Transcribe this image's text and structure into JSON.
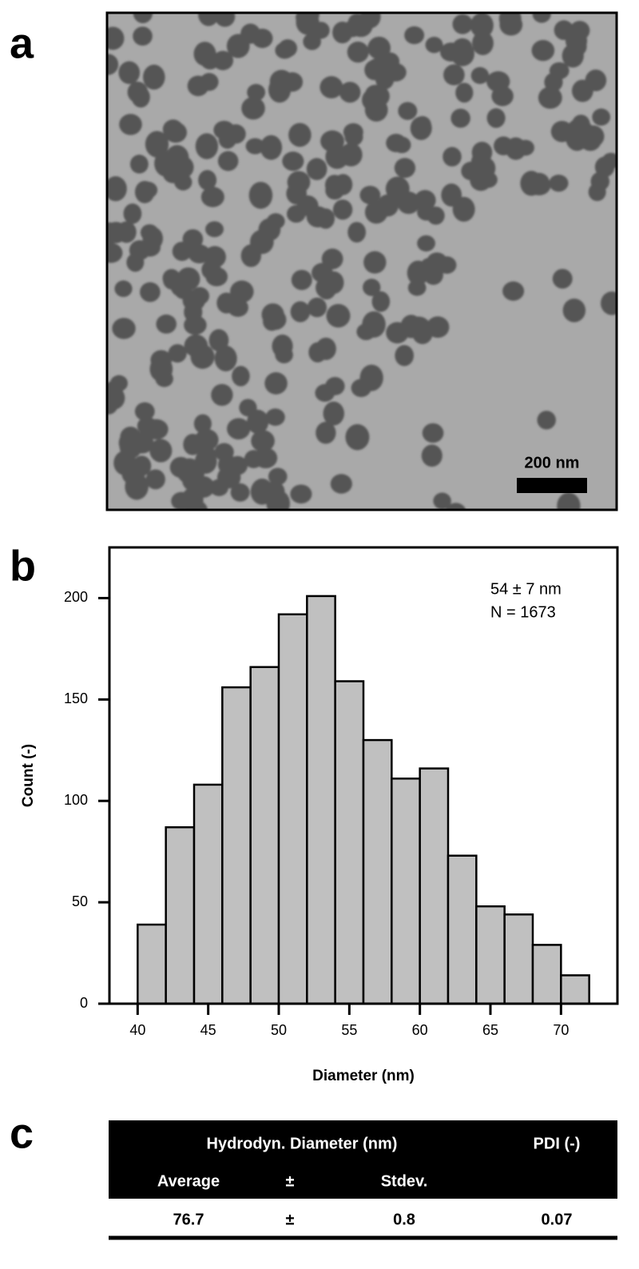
{
  "panel_labels": [
    "a",
    "b",
    "c"
  ],
  "image": {
    "scale_bar_label": "200 nm"
  },
  "chart_data": {
    "type": "histogram",
    "x_label": "Diameter (nm)",
    "y_label": "Count (-)",
    "annotations": [
      "54 ± 7 nm",
      "N = 1673"
    ],
    "bins": [
      40,
      42,
      44,
      46,
      48,
      50,
      52,
      54,
      56,
      58,
      60,
      62,
      64,
      66,
      68,
      70,
      72
    ],
    "values": [
      39,
      87,
      108,
      156,
      166,
      192,
      201,
      159,
      130,
      111,
      116,
      73,
      48,
      44,
      29,
      14
    ],
    "color": "#c0c0c0",
    "xlim": [
      38,
      74
    ],
    "xticks": [
      40,
      45,
      50,
      55,
      60,
      65,
      70
    ],
    "ylim": [
      0,
      225
    ],
    "yticks": [
      0,
      50,
      100,
      150,
      200
    ]
  },
  "table": {
    "header": [
      "Hydrodyn. Diameter (nm)",
      "PDI (-)"
    ],
    "subheader": [
      "Average",
      "±",
      "Stdev."
    ],
    "rows": [
      [
        "76.7",
        "±",
        "0.8",
        "0.07"
      ]
    ]
  }
}
